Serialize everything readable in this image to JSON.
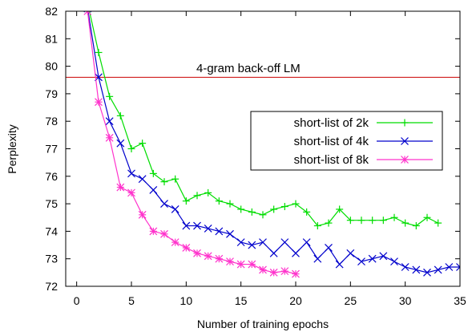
{
  "chart_data": {
    "type": "line",
    "title": "",
    "xlabel": "Number of training epochs",
    "ylabel": "Perplexity",
    "xlim": [
      -1,
      35
    ],
    "ylim": [
      72,
      82
    ],
    "xticks": [
      "0",
      "5",
      "10",
      "15",
      "20",
      "25",
      "30",
      "35"
    ],
    "yticks": [
      "72",
      "73",
      "74",
      "75",
      "76",
      "77",
      "78",
      "79",
      "80",
      "81",
      "82"
    ],
    "grid": false,
    "legend_position": "right",
    "reference_line": {
      "label": "4-gram back-off LM",
      "y": 79.6,
      "color": "#cc0000"
    },
    "series": [
      {
        "name": "short-list of 2k",
        "color": "#00dd00",
        "marker": "plus",
        "x": [
          1,
          2,
          3,
          4,
          5,
          6,
          7,
          8,
          9,
          10,
          11,
          12,
          13,
          14,
          15,
          16,
          17,
          18,
          19,
          20,
          21,
          22,
          23,
          24,
          25,
          26,
          27,
          28,
          29,
          30,
          31,
          32,
          33
        ],
        "y": [
          82.3,
          80.5,
          78.9,
          78.2,
          77.0,
          77.2,
          76.1,
          75.8,
          75.9,
          75.1,
          75.3,
          75.4,
          75.1,
          75.0,
          74.8,
          74.7,
          74.6,
          74.8,
          74.9,
          75.0,
          74.7,
          74.2,
          74.3,
          74.8,
          74.4,
          74.4,
          74.4,
          74.4,
          74.5,
          74.3,
          74.2,
          74.5,
          74.3
        ]
      },
      {
        "name": "short-list of 4k",
        "color": "#0000cc",
        "marker": "cross",
        "x": [
          1,
          2,
          3,
          4,
          5,
          6,
          7,
          8,
          9,
          10,
          11,
          12,
          13,
          14,
          15,
          16,
          17,
          18,
          19,
          20,
          21,
          22,
          23,
          24,
          25,
          26,
          27,
          28,
          29,
          30,
          31,
          32,
          33,
          34,
          35
        ],
        "y": [
          82.1,
          79.6,
          78.0,
          77.2,
          76.1,
          75.9,
          75.5,
          75.0,
          74.8,
          74.2,
          74.2,
          74.1,
          74.0,
          73.9,
          73.6,
          73.5,
          73.6,
          73.2,
          73.6,
          73.2,
          73.6,
          73.0,
          73.4,
          72.8,
          73.2,
          72.9,
          73.0,
          73.1,
          72.9,
          72.7,
          72.6,
          72.5,
          72.6,
          72.7,
          72.7
        ]
      },
      {
        "name": "short-list of 8k",
        "color": "#ff33cc",
        "marker": "star",
        "x": [
          1,
          2,
          3,
          4,
          5,
          6,
          7,
          8,
          9,
          10,
          11,
          12,
          13,
          14,
          15,
          16,
          17,
          18,
          19,
          20
        ],
        "y": [
          82.0,
          78.7,
          77.4,
          75.6,
          75.4,
          74.6,
          74.0,
          73.9,
          73.6,
          73.4,
          73.2,
          73.1,
          73.0,
          72.9,
          72.8,
          72.8,
          72.6,
          72.5,
          72.55,
          72.45
        ]
      }
    ]
  }
}
